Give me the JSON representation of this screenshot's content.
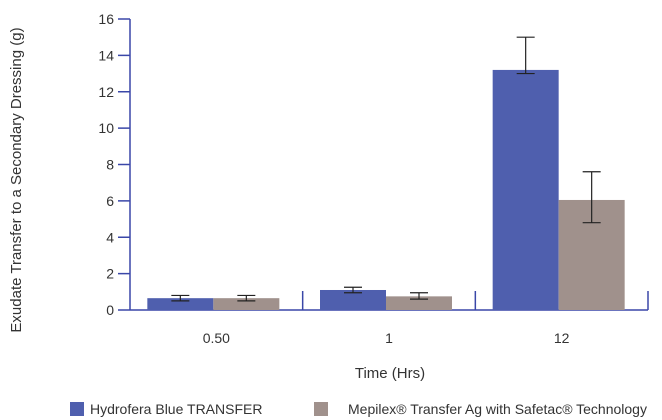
{
  "chart_data": {
    "type": "bar",
    "categories": [
      "0.50",
      "1",
      "12"
    ],
    "series": [
      {
        "name": "Hydrofera Blue TRANSFER",
        "color": "#4f5fae",
        "values": [
          0.65,
          1.1,
          13.2
        ],
        "err_low": [
          0.5,
          0.95,
          13.0
        ],
        "err_high": [
          0.8,
          1.25,
          15.0
        ]
      },
      {
        "name": "Mepilex® Transfer Ag with Safetac® Technology",
        "color": "#a0918c",
        "values": [
          0.65,
          0.75,
          6.05
        ],
        "err_low": [
          0.5,
          0.6,
          4.8
        ],
        "err_high": [
          0.8,
          0.95,
          7.6
        ]
      }
    ],
    "title": "",
    "xlabel": "Time (Hrs)",
    "ylabel": "Exudate Transfer to a Secondary Dressing (g)",
    "ylim": [
      0,
      16
    ],
    "yticks": [
      0,
      2,
      4,
      6,
      8,
      10,
      12,
      14,
      16
    ],
    "axis_color": "#3a47a8",
    "grid": false,
    "legend_position": "bottom"
  }
}
